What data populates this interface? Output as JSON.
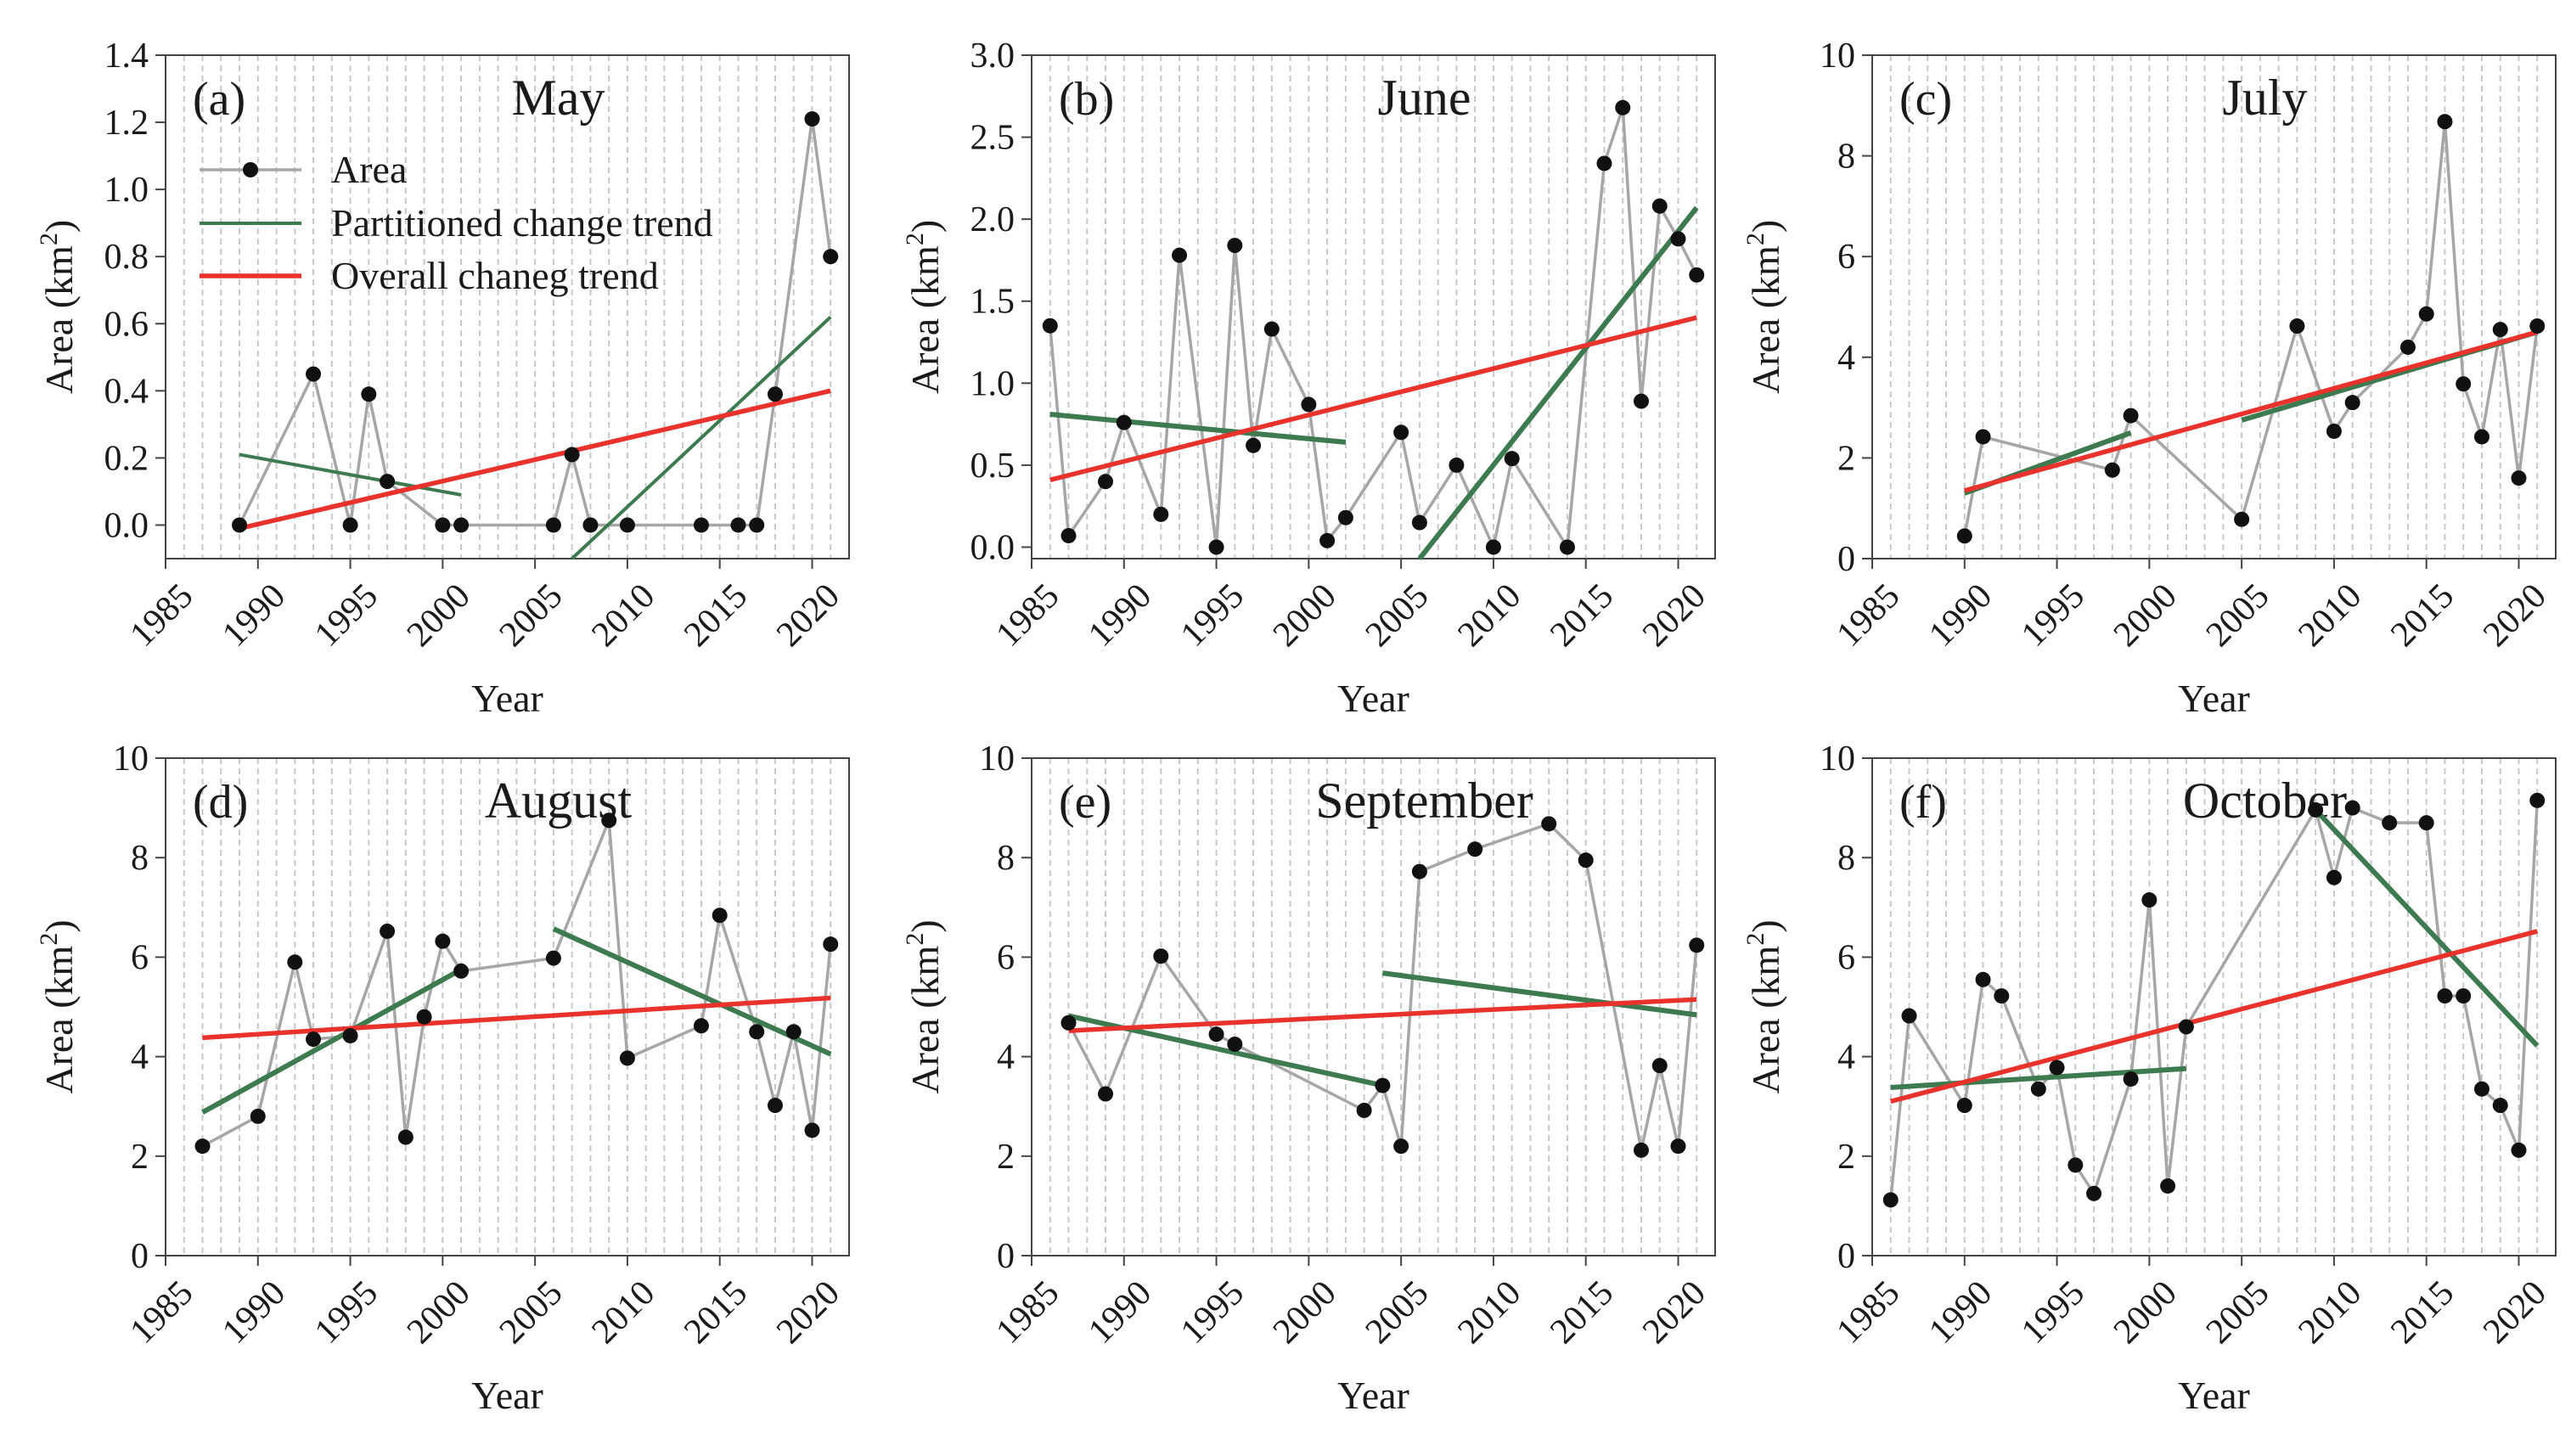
{
  "chart_data": [
    {
      "type": "line",
      "tag": "(a)",
      "title": "May",
      "xlabel": "Year",
      "ylabel": "Area (km2)",
      "xlim": [
        1985,
        2022
      ],
      "ylim": [
        -0.1,
        1.4
      ],
      "xticks": [
        1985,
        1990,
        1995,
        2000,
        2005,
        2010,
        2015,
        2020
      ],
      "yticks": [
        0,
        0.2,
        0.4,
        0.6,
        0.8,
        1.0,
        1.2,
        1.4
      ],
      "ytick_labels": [
        "0.0",
        "0.2",
        "0.4",
        "0.6",
        "0.8",
        "1.0",
        "1.2",
        "1.4"
      ],
      "series": [
        {
          "name": "Area",
          "x": [
            1989,
            1993,
            1995,
            1996,
            1997,
            2000,
            2001,
            2006,
            2007,
            2008,
            2010,
            2014,
            2016,
            2017,
            2018,
            2020,
            2021
          ],
          "y": [
            0.0,
            0.45,
            0.0,
            0.39,
            0.13,
            0.0,
            0.0,
            0.0,
            0.21,
            0.0,
            0.0,
            0.0,
            0.0,
            0.0,
            0.39,
            1.21,
            0.8
          ]
        }
      ],
      "partitioned_trends": [
        {
          "x": [
            1989,
            2001
          ],
          "y": [
            0.21,
            0.09
          ]
        },
        {
          "x": [
            2007,
            2021
          ],
          "y": [
            -0.1,
            0.62
          ]
        }
      ],
      "overall_trend": {
        "x": [
          1989,
          2021
        ],
        "y": [
          -0.01,
          0.4
        ]
      }
    },
    {
      "type": "line",
      "tag": "(b)",
      "title": "June",
      "xlabel": "Year",
      "ylabel": "Area (km2)",
      "xlim": [
        1985,
        2022
      ],
      "ylim": [
        -0.07,
        3.0
      ],
      "xticks": [
        1985,
        1990,
        1995,
        2000,
        2005,
        2010,
        2015,
        2020
      ],
      "yticks": [
        0,
        0.5,
        1.0,
        1.5,
        2.0,
        2.5,
        3.0
      ],
      "ytick_labels": [
        "0.0",
        "0.5",
        "1.0",
        "1.5",
        "2.0",
        "2.5",
        "3.0"
      ],
      "series": [
        {
          "name": "Area",
          "x": [
            1986,
            1987,
            1989,
            1990,
            1992,
            1993,
            1995,
            1996,
            1997,
            1998,
            2000,
            2001,
            2002,
            2005,
            2006,
            2008,
            2010,
            2011,
            2014,
            2016,
            2017,
            2018,
            2019,
            2020,
            2021
          ],
          "y": [
            1.35,
            0.07,
            0.4,
            0.76,
            0.2,
            1.78,
            0.0,
            1.84,
            0.62,
            1.33,
            0.87,
            0.04,
            0.18,
            0.7,
            0.15,
            0.5,
            0.0,
            0.54,
            0.0,
            2.34,
            2.68,
            0.89,
            2.08,
            1.88,
            1.66
          ]
        }
      ],
      "partitioned_trends": [
        {
          "x": [
            1986,
            2002
          ],
          "y": [
            0.81,
            0.64
          ]
        },
        {
          "x": [
            2006,
            2021
          ],
          "y": [
            -0.07,
            2.07
          ]
        }
      ],
      "overall_trend": {
        "x": [
          1986,
          2021
        ],
        "y": [
          0.41,
          1.4
        ]
      }
    },
    {
      "type": "line",
      "tag": "(c)",
      "title": "July",
      "xlabel": "Year",
      "ylabel": "Area (km2)",
      "xlim": [
        1985,
        2022
      ],
      "ylim": [
        0,
        10
      ],
      "xticks": [
        1985,
        1990,
        1995,
        2000,
        2005,
        2010,
        2015,
        2020
      ],
      "yticks": [
        0,
        2,
        4,
        6,
        8,
        10
      ],
      "ytick_labels": [
        "0",
        "2",
        "4",
        "6",
        "8",
        "10"
      ],
      "series": [
        {
          "name": "Area",
          "x": [
            1990,
            1991,
            1998,
            1999,
            2005,
            2008,
            2010,
            2011,
            2014,
            2015,
            2016,
            2017,
            2018,
            2019,
            2020,
            2021
          ],
          "y": [
            0.45,
            2.42,
            1.76,
            2.84,
            0.78,
            4.62,
            2.53,
            3.1,
            4.2,
            4.86,
            8.68,
            3.47,
            2.42,
            4.55,
            1.6,
            4.62
          ]
        }
      ],
      "partitioned_trends": [
        {
          "x": [
            1990,
            1999
          ],
          "y": [
            1.3,
            2.5
          ]
        },
        {
          "x": [
            2005,
            2021
          ],
          "y": [
            2.75,
            4.5
          ]
        }
      ],
      "overall_trend": {
        "x": [
          1990,
          2021
        ],
        "y": [
          1.35,
          4.5
        ]
      }
    },
    {
      "type": "line",
      "tag": "(d)",
      "title": "August",
      "xlabel": "Year",
      "ylabel": "Area (km2)",
      "xlim": [
        1985,
        2022
      ],
      "ylim": [
        0,
        10
      ],
      "xticks": [
        1985,
        1990,
        1995,
        2000,
        2005,
        2010,
        2015,
        2020
      ],
      "yticks": [
        0,
        2,
        4,
        6,
        8,
        10
      ],
      "ytick_labels": [
        "0",
        "2",
        "4",
        "6",
        "8",
        "10"
      ],
      "series": [
        {
          "name": "Area",
          "x": [
            1987,
            1990,
            1992,
            1993,
            1995,
            1997,
            1998,
            1999,
            2000,
            2001,
            2006,
            2009,
            2010,
            2014,
            2015,
            2017,
            2018,
            2019,
            2020,
            2021
          ],
          "y": [
            2.2,
            2.8,
            5.9,
            4.35,
            4.42,
            6.52,
            2.38,
            4.8,
            6.32,
            5.72,
            5.98,
            8.75,
            3.97,
            4.62,
            6.84,
            4.5,
            3.02,
            4.5,
            2.52,
            6.26
          ]
        }
      ],
      "partitioned_trends": [
        {
          "x": [
            1987,
            2001
          ],
          "y": [
            2.88,
            5.75
          ]
        },
        {
          "x": [
            2006,
            2021
          ],
          "y": [
            6.57,
            4.05
          ]
        }
      ],
      "overall_trend": {
        "x": [
          1987,
          2021
        ],
        "y": [
          4.38,
          5.18
        ]
      }
    },
    {
      "type": "line",
      "tag": "(e)",
      "title": "September",
      "xlabel": "Year",
      "ylabel": "Area (km2)",
      "xlim": [
        1985,
        2022
      ],
      "ylim": [
        0,
        10
      ],
      "xticks": [
        1985,
        1990,
        1995,
        2000,
        2005,
        2010,
        2015,
        2020
      ],
      "yticks": [
        0,
        2,
        4,
        6,
        8,
        10
      ],
      "ytick_labels": [
        "0",
        "2",
        "4",
        "6",
        "8",
        "10"
      ],
      "series": [
        {
          "name": "Area",
          "x": [
            1987,
            1989,
            1992,
            1995,
            1996,
            2003,
            2004,
            2005,
            2006,
            2009,
            2013,
            2015,
            2018,
            2019,
            2020,
            2021
          ],
          "y": [
            4.68,
            3.25,
            6.02,
            4.45,
            4.25,
            2.92,
            3.42,
            2.2,
            7.72,
            8.17,
            8.68,
            7.95,
            2.12,
            3.82,
            2.2,
            6.24
          ]
        }
      ],
      "partitioned_trends": [
        {
          "x": [
            1987,
            2004
          ],
          "y": [
            4.82,
            3.42
          ]
        },
        {
          "x": [
            2004,
            2021
          ],
          "y": [
            5.68,
            4.84
          ]
        }
      ],
      "overall_trend": {
        "x": [
          1987,
          2021
        ],
        "y": [
          4.52,
          5.15
        ]
      }
    },
    {
      "type": "line",
      "tag": "(f)",
      "title": "October",
      "xlabel": "Year",
      "ylabel": "Area (km2)",
      "xlim": [
        1985,
        2022
      ],
      "ylim": [
        0,
        10
      ],
      "xticks": [
        1985,
        1990,
        1995,
        2000,
        2005,
        2010,
        2015,
        2020
      ],
      "yticks": [
        0,
        2,
        4,
        6,
        8,
        10
      ],
      "ytick_labels": [
        "0",
        "2",
        "4",
        "6",
        "8",
        "10"
      ],
      "series": [
        {
          "name": "Area",
          "x": [
            1986,
            1987,
            1990,
            1991,
            1992,
            1994,
            1995,
            1996,
            1997,
            1999,
            2000,
            2001,
            2002,
            2009,
            2010,
            2011,
            2013,
            2015,
            2016,
            2017,
            2018,
            2019,
            2020,
            2021
          ],
          "y": [
            1.12,
            4.82,
            3.02,
            5.55,
            5.22,
            3.35,
            3.78,
            1.82,
            1.25,
            3.55,
            7.15,
            1.4,
            4.6,
            8.96,
            7.6,
            9.0,
            8.7,
            8.7,
            5.22,
            5.22,
            3.35,
            3.02,
            2.12,
            9.15
          ]
        }
      ],
      "partitioned_trends": [
        {
          "x": [
            1986,
            2002
          ],
          "y": [
            3.38,
            3.76
          ]
        },
        {
          "x": [
            2009,
            2021
          ],
          "y": [
            8.96,
            4.22
          ]
        }
      ],
      "overall_trend": {
        "x": [
          1986,
          2021
        ],
        "y": [
          3.1,
          6.52
        ]
      }
    }
  ],
  "legend": {
    "area": "Area",
    "partitioned": "Partitioned change trend",
    "overall": "Overall chaneg trend"
  },
  "colors": {
    "area_line": "#a6a6a6",
    "area_marker": "#111111",
    "partitioned": "#3d7a4f",
    "overall": "#e8322b",
    "grid": "#c8c8c8",
    "axis": "#444444"
  }
}
